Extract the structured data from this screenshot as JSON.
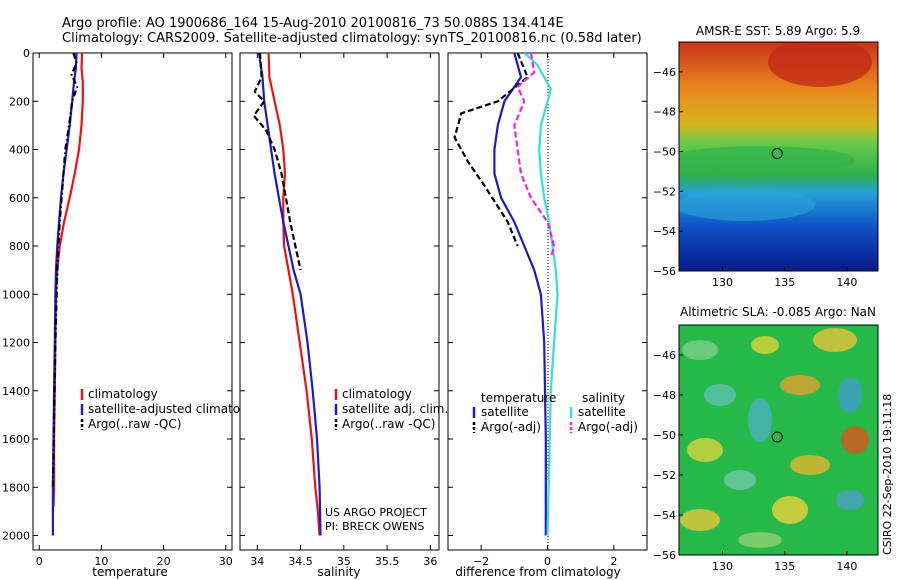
{
  "header": {
    "line1": "Argo profile: AO 1900686_164 15-Aug-2010 20100816_73 50.088S 134.414E",
    "line2": "Climatology: CARS2009. Satellite-adjusted climatology: synTS_20100816.nc (0.58d later)"
  },
  "credit": {
    "line1": "US ARGO PROJECT",
    "line2": "PI: BRECK OWENS"
  },
  "footer": {
    "stamp": "CSIRO 22-Sep-2010 19:11:18"
  },
  "colors": {
    "red": "#ee1111",
    "blue": "#1a1acc",
    "black": "#000000",
    "cyan": "#33e0e0",
    "magenta": "#ee22ee"
  },
  "chart_data": [
    {
      "type": "line",
      "xlabel": "temperature",
      "ylabel": "",
      "xlim": [
        -1,
        31
      ],
      "ylim": [
        2060,
        0
      ],
      "xticks": [
        0,
        10,
        20,
        30
      ],
      "yticks": [
        0,
        200,
        400,
        600,
        800,
        1000,
        1200,
        1400,
        1600,
        1800,
        2000
      ],
      "series": [
        {
          "name": "climatology",
          "color": "#ee1111",
          "style": "solid",
          "x": [
            6.9,
            6.8,
            7.0,
            7.0,
            6.8,
            6.4,
            5.7,
            4.9,
            4.0,
            3.3,
            2.9,
            2.7,
            2.6,
            2.5,
            2.4,
            2.4,
            2.3
          ],
          "y": [
            0,
            60,
            120,
            200,
            300,
            400,
            500,
            600,
            700,
            800,
            900,
            1000,
            1200,
            1400,
            1600,
            1800,
            1880
          ]
        },
        {
          "name": "satellite-adjusted climatology",
          "color": "#1a1acc",
          "style": "solid",
          "x": [
            6.0,
            5.9,
            5.6,
            5.3,
            4.9,
            4.4,
            3.9,
            3.5,
            3.2,
            2.9,
            2.7,
            2.6,
            2.5,
            2.4,
            2.3,
            2.2,
            2.2
          ],
          "y": [
            0,
            60,
            120,
            200,
            300,
            400,
            500,
            600,
            700,
            800,
            900,
            1000,
            1200,
            1400,
            1600,
            1800,
            2000
          ]
        },
        {
          "name": "Argo(..raw -QC)",
          "color": "#000000",
          "style": "dashdot",
          "x": [
            5.5,
            6.0,
            5.2,
            6.1,
            5.3,
            4.8,
            4.2,
            3.9,
            3.6,
            3.3,
            3.1,
            2.9,
            2.6,
            2.4,
            2.2
          ],
          "y": [
            0,
            40,
            90,
            140,
            200,
            300,
            400,
            500,
            600,
            700,
            800,
            900,
            1200,
            1500,
            1800
          ]
        }
      ],
      "legend": [
        {
          "label": "climatology",
          "color": "#ee1111"
        },
        {
          "label": "satellite-adjusted climatology",
          "color": "#1a1acc"
        },
        {
          "label": "Argo(..raw -QC)",
          "color": "#000000"
        }
      ]
    },
    {
      "type": "line",
      "xlabel": "salinity",
      "ylabel": "",
      "xlim": [
        33.8,
        36.1
      ],
      "ylim": [
        2060,
        0
      ],
      "xticks": [
        34,
        34.5,
        35,
        35.5,
        36
      ],
      "series": [
        {
          "name": "climatology",
          "color": "#ee1111",
          "style": "solid",
          "x": [
            34.13,
            34.14,
            34.2,
            34.26,
            34.3,
            34.32,
            34.3,
            34.3,
            34.31,
            34.36,
            34.41,
            34.49,
            34.57,
            34.63,
            34.67,
            34.7,
            34.72
          ],
          "y": [
            0,
            100,
            200,
            300,
            400,
            500,
            600,
            700,
            800,
            900,
            1000,
            1200,
            1400,
            1600,
            1800,
            1900,
            2000
          ]
        },
        {
          "name": "satellite adj. clim.",
          "color": "#1a1acc",
          "style": "solid",
          "x": [
            34.02,
            34.06,
            34.08,
            34.12,
            34.16,
            34.2,
            34.25,
            34.3,
            34.36,
            34.42,
            34.5,
            34.58,
            34.64,
            34.69,
            34.72,
            34.73
          ],
          "y": [
            0,
            100,
            200,
            300,
            400,
            500,
            600,
            700,
            800,
            900,
            1000,
            1200,
            1400,
            1600,
            1800,
            2000
          ]
        },
        {
          "name": "Argo(..raw -QC)",
          "color": "#000000",
          "style": "dashed",
          "x": [
            34.03,
            34.05,
            33.97,
            34.08,
            33.96,
            34.1,
            34.2,
            34.28,
            34.33,
            34.38,
            34.44,
            34.5
          ],
          "y": [
            0,
            100,
            160,
            200,
            260,
            320,
            400,
            500,
            600,
            700,
            800,
            900
          ]
        }
      ],
      "legend": [
        {
          "label": "climatology",
          "color": "#ee1111"
        },
        {
          "label": "satellite adj. clim.",
          "color": "#1a1acc"
        },
        {
          "label": "Argo(..raw -QC)",
          "color": "#000000"
        }
      ]
    },
    {
      "type": "line",
      "xlabel": "difference from climatology",
      "ylabel": "",
      "xlim": [
        -3,
        3
      ],
      "ylim": [
        2060,
        0
      ],
      "xticks": [
        -2,
        0,
        2
      ],
      "series": [
        {
          "name": "temperature satellite",
          "color": "#1a1acc",
          "style": "solid",
          "x": [
            -1.0,
            -0.8,
            -1.3,
            -1.5,
            -1.6,
            -1.6,
            -1.4,
            -1.0,
            -0.7,
            -0.4,
            -0.2,
            -0.1,
            -0.05,
            -0.05
          ],
          "y": [
            0,
            100,
            200,
            300,
            400,
            500,
            600,
            700,
            800,
            900,
            1000,
            1200,
            1600,
            2000
          ]
        },
        {
          "name": "temperature Argo(-adj)",
          "color": "#000000",
          "style": "dashed",
          "x": [
            -0.9,
            -0.6,
            -1.5,
            -2.6,
            -2.8,
            -2.4,
            -1.9,
            -1.2,
            -0.9
          ],
          "y": [
            0,
            100,
            200,
            250,
            350,
            450,
            550,
            700,
            800
          ]
        },
        {
          "name": "salinity satellite",
          "color": "#33e0e0",
          "style": "solid",
          "x": [
            -0.7,
            -0.3,
            0.1,
            -0.2,
            -0.25,
            -0.2,
            -0.1,
            0.05,
            0.15,
            0.25,
            0.3,
            0.2,
            0.1,
            0.05,
            0.0
          ],
          "y": [
            0,
            50,
            150,
            300,
            400,
            500,
            600,
            700,
            800,
            900,
            1000,
            1200,
            1400,
            1700,
            2000
          ]
        },
        {
          "name": "salinity Argo(-adj)",
          "color": "#ee22ee",
          "style": "dashed",
          "x": [
            -0.5,
            -0.4,
            -0.9,
            -0.7,
            -1.0,
            -0.9,
            -0.8,
            -0.5,
            0.0,
            0.2,
            0.1
          ],
          "y": [
            0,
            80,
            140,
            200,
            300,
            400,
            500,
            600,
            700,
            800,
            850
          ]
        }
      ],
      "legend": [
        {
          "label": "satellite",
          "color": "#1a1acc"
        },
        {
          "label": "Argo(-adj)",
          "color": "#000000"
        },
        {
          "label": "satellite",
          "color": "#33e0e0"
        },
        {
          "label": "Argo(-adj)",
          "color": "#ee22ee"
        }
      ],
      "legend_headers": [
        "temperature",
        "salinity"
      ]
    },
    {
      "type": "heatmap",
      "title": "AMSR-E SST: 5.89 Argo: 5.9",
      "xlim": [
        126.5,
        142.5
      ],
      "ylim": [
        -56,
        -44.5
      ],
      "xticks": [
        130,
        135,
        140
      ],
      "yticks": [
        -46,
        -48,
        -50,
        -52,
        -54,
        -56
      ],
      "marker": {
        "lon": 134.4,
        "lat": -50.1
      }
    },
    {
      "type": "heatmap",
      "title": "Altimetric SLA: -0.085 Argo: NaN",
      "xlim": [
        126.5,
        142.5
      ],
      "ylim": [
        -56,
        -44.5
      ],
      "xticks": [
        130,
        135,
        140
      ],
      "yticks": [
        -46,
        -48,
        -50,
        -52,
        -54,
        -56
      ],
      "marker": {
        "lon": 134.4,
        "lat": -50.1
      }
    }
  ]
}
